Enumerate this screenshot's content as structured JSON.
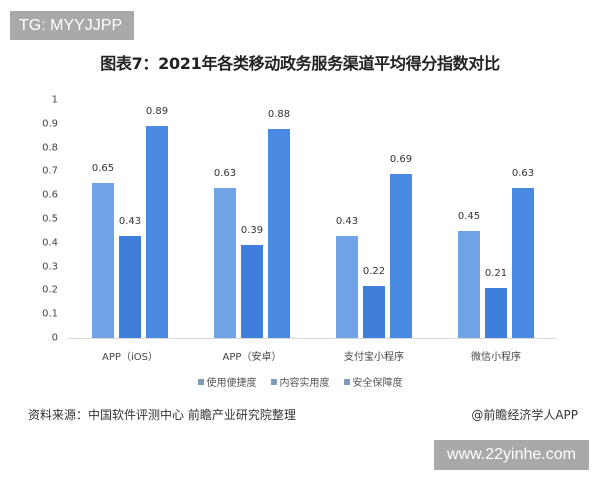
{
  "overlay": {
    "top_tag": "TG: MYYJJPP",
    "bottom_tag": "www.22yinhe.com"
  },
  "chart_data": {
    "type": "bar",
    "title": "图表7：2021年各类移动政务服务渠道平均得分指数对比",
    "xlabel": "",
    "ylabel": "",
    "ylim": [
      0,
      1
    ],
    "yticks": [
      "0",
      "0.1",
      "0.2",
      "0.3",
      "0.4",
      "0.5",
      "0.6",
      "0.7",
      "0.8",
      "0.9",
      "1"
    ],
    "grid": false,
    "legend_position": "bottom",
    "categories": [
      "APP（iOS）",
      "APP（安卓）",
      "支付宝小程序",
      "微信小程序"
    ],
    "series": [
      {
        "name": "使用便捷度",
        "color": "#6fa3e6",
        "values": [
          0.65,
          0.63,
          0.43,
          0.45
        ]
      },
      {
        "name": "内容实用度",
        "color": "#3f7fdb",
        "values": [
          0.43,
          0.39,
          0.22,
          0.21
        ]
      },
      {
        "name": "安全保障度",
        "color": "#4b8ae2",
        "values": [
          0.89,
          0.88,
          0.69,
          0.63
        ]
      }
    ],
    "data_labels": [
      [
        "0.65",
        "0.43",
        "0.89"
      ],
      [
        "0.63",
        "0.39",
        "0.88"
      ],
      [
        "0.43",
        "0.22",
        "0.69"
      ],
      [
        "0.45",
        "0.21",
        "0.63"
      ]
    ]
  },
  "legend": {
    "swatch_color": "#7f9bb8",
    "items": [
      "使用便捷度",
      "内容实用度",
      "安全保障度"
    ]
  },
  "footer": {
    "source": "资料来源：中国软件评测中心 前瞻产业研究院整理",
    "credit": "@前瞻经济学人APP"
  }
}
